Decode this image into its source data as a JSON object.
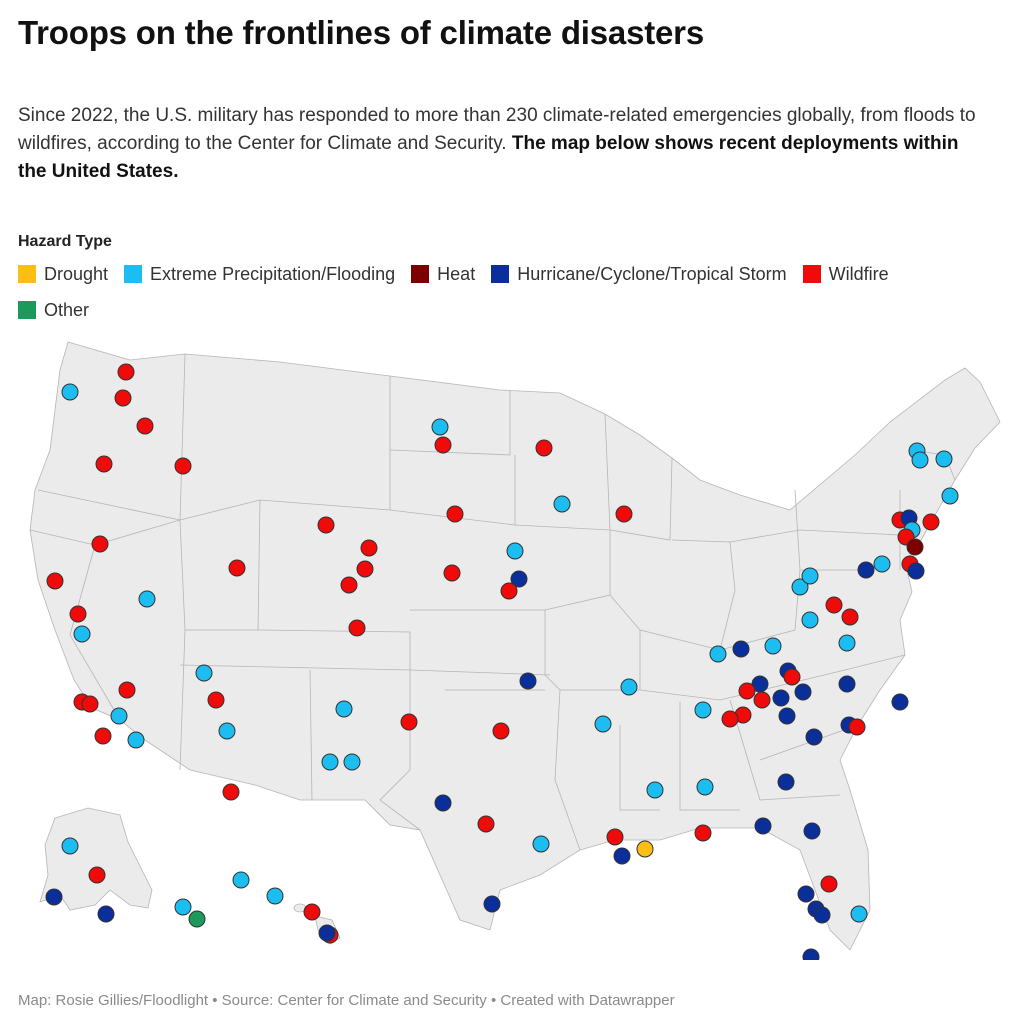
{
  "title": "Troops on the frontlines of climate disasters",
  "intro": {
    "text": "Since 2022, the U.S. military has responded to more than 230 climate-related emergencies globally, from floods to wildfires, according to the Center for Climate and Security.",
    "bold": "The map below shows recent deployments within the United States."
  },
  "legend": {
    "title": "Hazard Type",
    "items": [
      {
        "key": "drought",
        "label": "Drought",
        "color": "#fcbe14"
      },
      {
        "key": "flood",
        "label": "Extreme Precipitation/Flooding",
        "color": "#1cbef2"
      },
      {
        "key": "heat",
        "label": "Heat",
        "color": "#7d0000"
      },
      {
        "key": "hurricane",
        "label": "Hurricane/Cyclone/Tropical Storm",
        "color": "#0a2f9a"
      },
      {
        "key": "wildfire",
        "label": "Wildfire",
        "color": "#f00a0a"
      },
      {
        "key": "other",
        "label": "Other",
        "color": "#1b9a5c"
      }
    ]
  },
  "map": {
    "land_color": "#ebebeb",
    "border_color": "#b5b5b5",
    "marker_stroke": "#333333"
  },
  "footer": "Map: Rosie Gillies/Floodlight • Source: Center for Climate and Security • Created with Datawrapper"
}
